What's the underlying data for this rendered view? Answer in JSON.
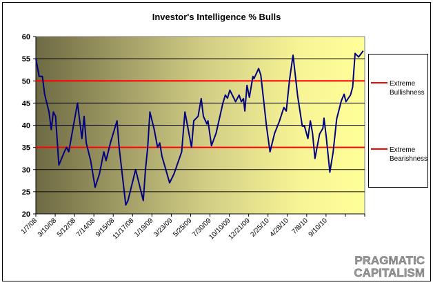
{
  "chart_data": {
    "type": "line",
    "title": "Investor's Intelligence % Bulls",
    "xlabel": "",
    "ylabel": "",
    "ylim": [
      20,
      60
    ],
    "yticks": [
      20,
      25,
      30,
      35,
      40,
      45,
      50,
      55,
      60
    ],
    "grid": true,
    "x_unit": "weeks since 1/7/08",
    "xlim": [
      0,
      150
    ],
    "xtick_labels": [
      "1/7/08",
      "3/10/08",
      "5/12/08",
      "7/14/08",
      "9/15/08",
      "11/17/08",
      "1/19/09",
      "3/23/09",
      "5/25/09",
      "7/30/09",
      "10/10/09",
      "12/21/09",
      "2/25/10",
      "4/28/10",
      "7/8/10",
      "9/10/10",
      "11/10/10"
    ],
    "series": [
      {
        "name": "% Bulls",
        "color": "#000080",
        "x": [
          0,
          1.5,
          3,
          4,
          6,
          7,
          8,
          9,
          10.5,
          13,
          14,
          15,
          19,
          21,
          22,
          23,
          25,
          27,
          29,
          31,
          32,
          34,
          37,
          38,
          41,
          42,
          45.5,
          49,
          50,
          51,
          52,
          54,
          55.5,
          56.5,
          57.5,
          61,
          63,
          66.5,
          68,
          69.5,
          71,
          72,
          74,
          75.4,
          76.4,
          78,
          78.5,
          80.1,
          82.2,
          85.3,
          86.4,
          87.4,
          88.5,
          91.1,
          92.7,
          93.7,
          94.7,
          95.3,
          96.3,
          97.4,
          99,
          99.5,
          101.6,
          102.6,
          105.2,
          106.8,
          108.9,
          111,
          113.1,
          114.2,
          115.7,
          117.3,
          119.4,
          121.5,
          122.5,
          124.1,
          125.2,
          126.2,
          127.3,
          129.4,
          130.9,
          131.4,
          132.5,
          134.1,
          135.6,
          137.2,
          139.3,
          140.6,
          141.4,
          143.5,
          144.5,
          145.6,
          147.2,
          149.3
        ],
        "y": [
          55,
          51,
          51,
          47,
          43,
          39,
          43,
          42,
          31,
          34,
          35,
          34,
          45,
          37,
          42,
          36,
          32,
          26,
          29,
          34,
          32,
          36,
          41,
          35,
          22,
          23,
          30,
          23,
          30,
          35,
          43,
          39,
          35,
          36,
          33,
          27,
          29,
          34,
          43,
          39,
          35,
          41,
          42,
          46,
          42,
          40.3,
          41,
          35.4,
          38.2,
          45,
          46.8,
          46.1,
          47.9,
          45.3,
          46.8,
          45.3,
          46,
          43.2,
          49,
          46.3,
          51,
          50.5,
          52.8,
          51.3,
          39.8,
          34,
          38.2,
          40.8,
          44,
          43.2,
          50.2,
          55.8,
          46.6,
          39.8,
          39.8,
          37,
          41,
          38.2,
          32.5,
          38,
          39.3,
          41.6,
          37.2,
          29.4,
          34,
          41.4,
          45.5,
          47,
          45.3,
          46.8,
          48.6,
          56.2,
          55.4,
          56.8
        ]
      },
      {
        "name": "Extreme Bullishness",
        "color": "#ff0000",
        "constant": 50
      },
      {
        "name": "Extreme Bearishness",
        "color": "#ff0000",
        "constant": 35
      }
    ],
    "legend": {
      "placement": "right",
      "entries": [
        "Extreme Bullishness",
        "Extreme Bearishness"
      ],
      "lines": [
        [
          "Extreme",
          "Bullishness"
        ],
        [
          "Extreme",
          "Bearishness"
        ]
      ]
    }
  },
  "watermark": [
    "PRAGMATIC",
    "CAPITALISM"
  ]
}
